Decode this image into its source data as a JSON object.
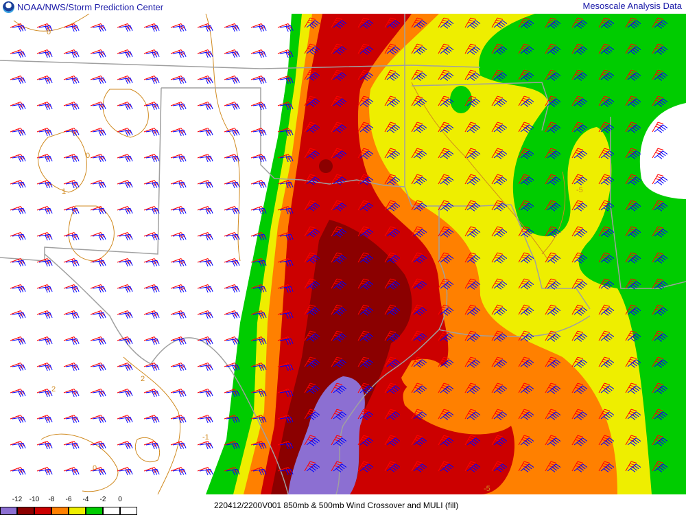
{
  "header": {
    "left_title": "NOAA/NWS/Storm Prediction Center",
    "right_title": "Mesoscale Analysis Data",
    "logo_icon": "noaa-logo-icon"
  },
  "caption": "220412/2200V001 850mb & 500mb Wind Crossover and MULI (fill)",
  "legend": {
    "labels": [
      "-12",
      "-10",
      "-8",
      "-6",
      "-4",
      "-2",
      "0"
    ],
    "colors": [
      "#8c6fd2",
      "#8b0000",
      "#cc0000",
      "#ff8000",
      "#eeee00",
      "#00cc00",
      "#ffffff",
      "#ffffff"
    ]
  },
  "map": {
    "fill_colors": {
      "purple": "#8c6fd2",
      "dark_red": "#8b0000",
      "red": "#cc0000",
      "orange": "#ff8000",
      "yellow": "#eeee00",
      "green": "#00cc00"
    },
    "contour_color": "#d08a20",
    "border_color": "#a0a0a0",
    "barb_colors": {
      "850mb": "#ff0000",
      "500mb": "#0000ff"
    },
    "contour_labels": [
      "0",
      "0",
      "1",
      "2",
      "2",
      "0",
      "-5",
      "-5",
      "-1"
    ]
  }
}
